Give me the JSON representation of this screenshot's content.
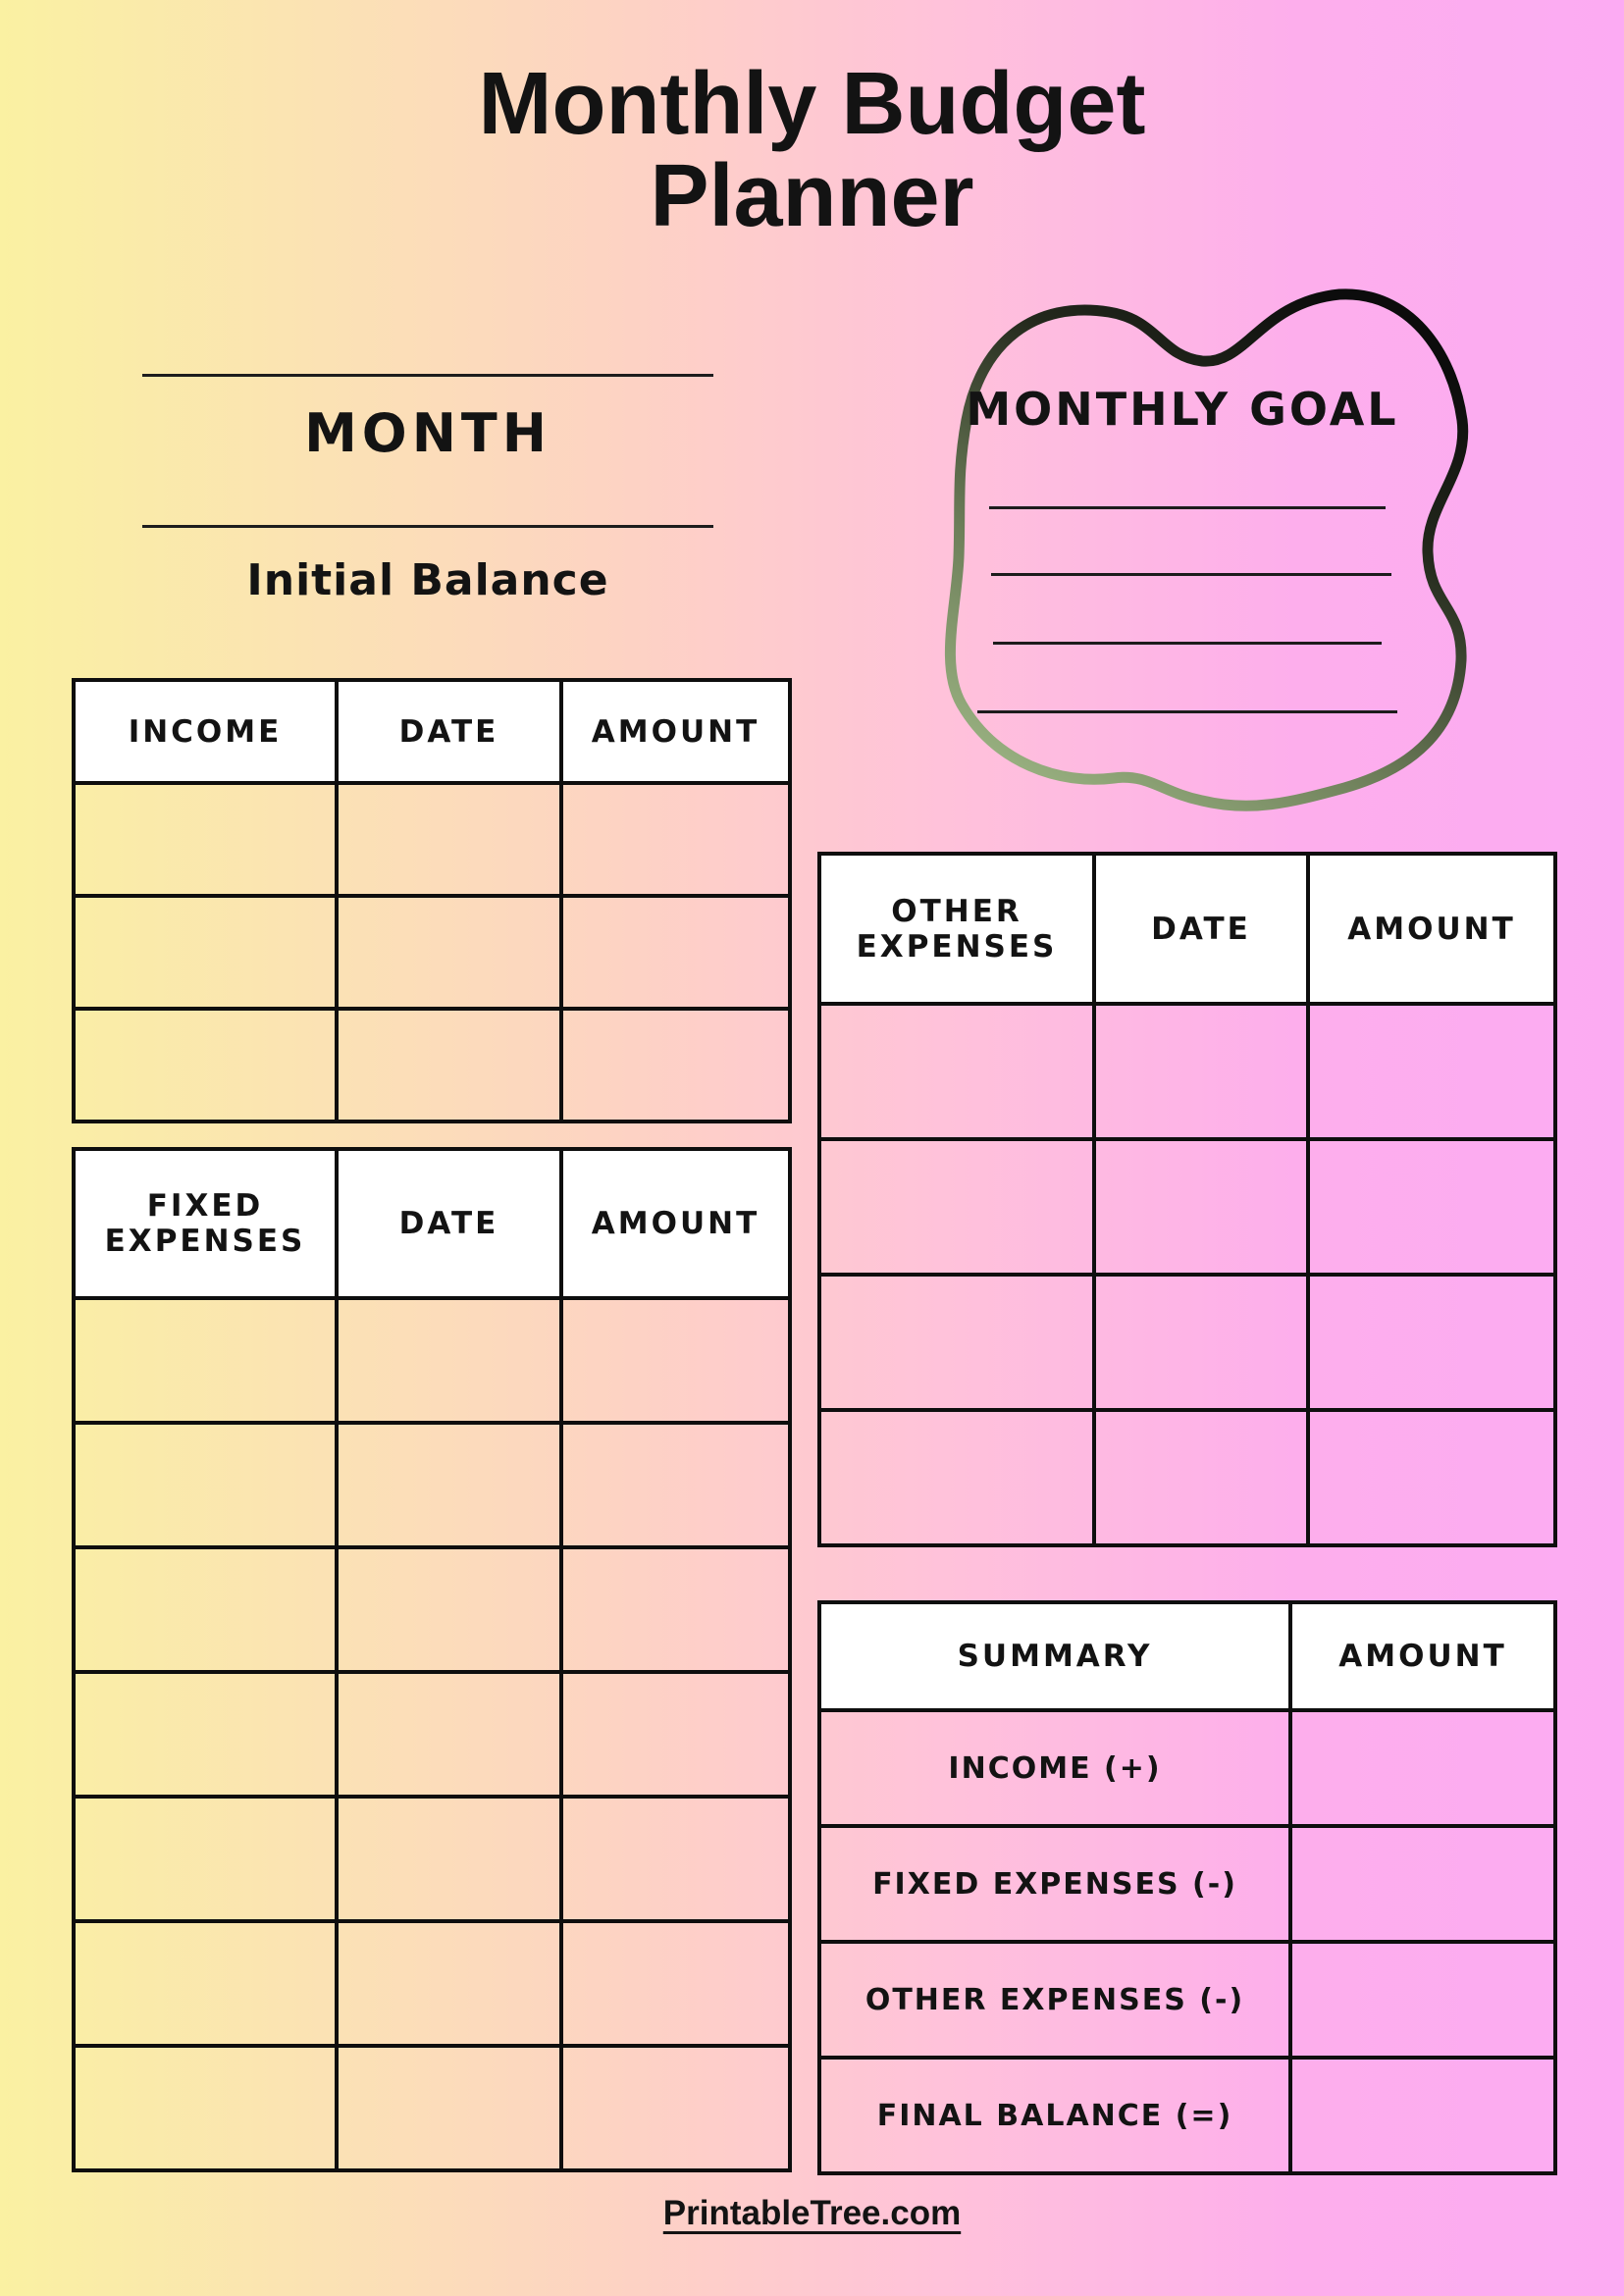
{
  "page": {
    "title_line1": "Monthly Budget",
    "title_line2": "Planner",
    "footer_link": "PrintableTree.com"
  },
  "month_section": {
    "month_label": "MONTH",
    "initial_balance_label": "Initial Balance"
  },
  "monthly_goal": {
    "title": "MONTHLY GOAL",
    "writing_lines": 4
  },
  "income_table": {
    "headers": [
      "INCOME",
      "DATE",
      "AMOUNT"
    ],
    "row_count": 3
  },
  "fixed_expenses_table": {
    "headers": [
      "FIXED EXPENSES",
      "DATE",
      "AMOUNT"
    ],
    "row_count": 7
  },
  "other_expenses_table": {
    "headers": [
      "OTHER EXPENSES",
      "DATE",
      "AMOUNT"
    ],
    "row_count": 4
  },
  "summary_table": {
    "headers": [
      "SUMMARY",
      "AMOUNT"
    ],
    "row_labels": [
      "INCOME (+)",
      "FIXED EXPENSES (-)",
      "OTHER EXPENSES (-)",
      "FINAL BALANCE (=)"
    ],
    "row_count": 4
  },
  "colors": {
    "background_yellow": "#faf1a2",
    "background_peach": "#fdd3c3",
    "background_pink": "#ffc2da",
    "background_magenta": "#fcabf3",
    "table_border": "#0e0e0e",
    "header_fill": "#ffffff",
    "text": "#131313",
    "blob_stroke_dark": "#0c0c0c",
    "blob_stroke_olive": "#6e7f5a",
    "blob_stroke_sage": "#9fb886"
  }
}
